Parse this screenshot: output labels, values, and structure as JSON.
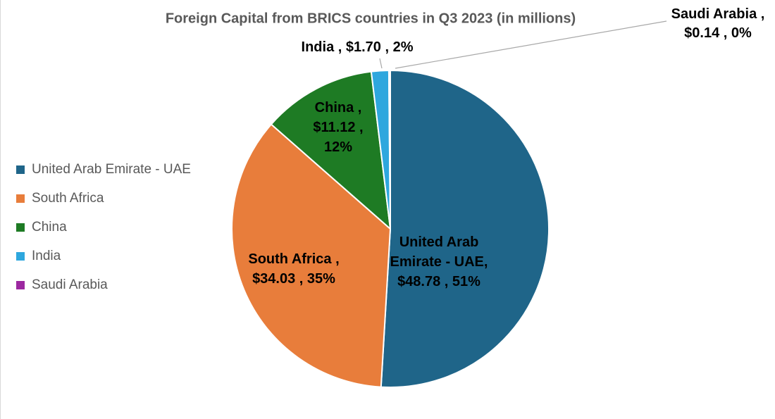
{
  "title": "Foreign Capital from BRICS countries in Q3 2023 (in millions)",
  "chart_data": {
    "type": "pie",
    "title": "Foreign Capital from BRICS countries in Q3 2023 (in millions)",
    "categories": [
      "United Arab Emirate - UAE",
      "South Africa",
      "China",
      "India",
      "Saudi Arabia"
    ],
    "values": [
      48.78,
      34.03,
      11.12,
      1.7,
      0.14
    ],
    "value_labels": [
      "$48.78",
      "$34.03",
      "$11.12",
      "$1.70",
      "$0.14"
    ],
    "percent_labels": [
      "51%",
      "35%",
      "12%",
      "2%",
      "0%"
    ],
    "colors": [
      "#1F6589",
      "#E87D3B",
      "#1E7B24",
      "#2EA7DE",
      "#9C28A0"
    ],
    "start_angle_deg": 0,
    "direction": "clockwise",
    "legend_position": "left",
    "label_text_color": "#000000",
    "title_color": "#595959",
    "slice_border_color": "#FFFFFF"
  },
  "legend": {
    "items": [
      {
        "label": "United Arab Emirate - UAE",
        "color": "#1F6589"
      },
      {
        "label": "South Africa",
        "color": "#E87D3B"
      },
      {
        "label": "China",
        "color": "#1E7B24"
      },
      {
        "label": "India",
        "color": "#2EA7DE"
      },
      {
        "label": "Saudi Arabia",
        "color": "#9C28A0"
      }
    ]
  },
  "callouts": {
    "uae": {
      "lines": [
        "United Arab",
        "Emirate - UAE,",
        "$48.78 , 51%"
      ]
    },
    "south_africa": {
      "lines": [
        "South Africa ,",
        "$34.03 , 35%"
      ]
    },
    "china": {
      "lines": [
        "China ,",
        "$11.12 ,",
        "12%"
      ]
    },
    "india": {
      "lines": [
        "India ,  $1.70  , 2%"
      ]
    },
    "saudi": {
      "lines": [
        "Saudi Arabia ,",
        "$0.14 , 0%"
      ]
    }
  }
}
